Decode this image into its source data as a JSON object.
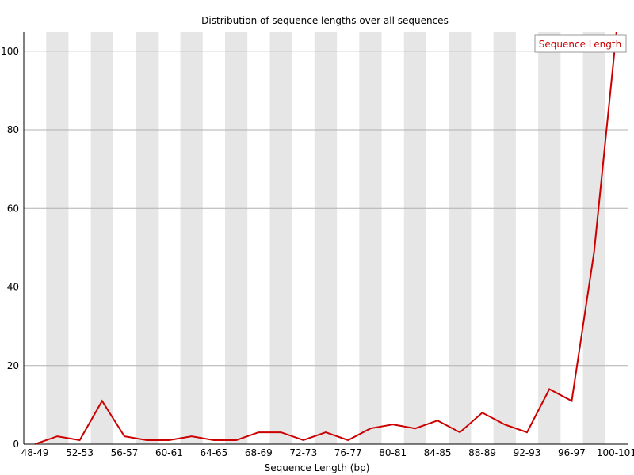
{
  "chart_data": {
    "type": "line",
    "title": "Distribution of sequence lengths over all sequences",
    "xlabel": "Sequence Length (bp)",
    "ylabel": "",
    "ylim": [
      0,
      105
    ],
    "yticks": [
      0,
      20,
      40,
      60,
      80,
      100
    ],
    "grid": true,
    "legend_position": "top-right",
    "categories": [
      "48-49",
      "50-51",
      "52-53",
      "54-55",
      "56-57",
      "58-59",
      "60-61",
      "62-63",
      "64-65",
      "66-67",
      "68-69",
      "70-71",
      "72-73",
      "74-75",
      "76-77",
      "78-79",
      "80-81",
      "82-83",
      "84-85",
      "86-87",
      "88-89",
      "90-91",
      "92-93",
      "94-95",
      "96-97",
      "98-99",
      "100-101"
    ],
    "shown_tick_labels": [
      "48-49",
      "52-53",
      "56-57",
      "60-61",
      "64-65",
      "68-69",
      "72-73",
      "76-77",
      "80-81",
      "84-85",
      "88-89",
      "92-93",
      "96-97",
      "100-101"
    ],
    "series": [
      {
        "name": "Sequence Length",
        "color": "#cc0000",
        "values": [
          0,
          2,
          1,
          11,
          2,
          1,
          1,
          2,
          1,
          1,
          3,
          3,
          1,
          3,
          1,
          4,
          5,
          4,
          6,
          3,
          8,
          5,
          3,
          14,
          11,
          49,
          105
        ]
      }
    ],
    "band_color": "#e6e6e6",
    "grid_color": "#b0b0b0"
  }
}
